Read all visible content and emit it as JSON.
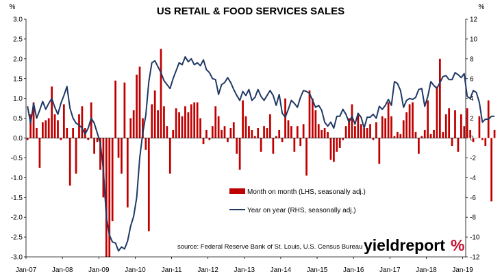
{
  "chart_data": {
    "type": "bar+line",
    "title": "US RETAIL & FOOD SERVICES SALES",
    "left_unit": "%",
    "right_unit": "%",
    "left_axis": {
      "min": -3.0,
      "max": 3.0,
      "step": 0.5,
      "ticks": [
        "3.0",
        "2.5",
        "2.0",
        "1.5",
        "1.0",
        "0.5",
        "0.0",
        "-0.5",
        "-1.0",
        "-1.5",
        "-2.0",
        "-2.5",
        "-3.0"
      ]
    },
    "right_axis": {
      "min": -12,
      "max": 12,
      "step": 2,
      "ticks": [
        "12",
        "10",
        "8",
        "6",
        "4",
        "2",
        "0",
        "-2",
        "-4",
        "-6",
        "-8",
        "-10",
        "-12"
      ]
    },
    "x_labels": [
      "Jan-07",
      "Jan-08",
      "Jan-09",
      "Jan-10",
      "Jan-11",
      "Jan-12",
      "Jan-13",
      "Jan-14",
      "Jan-15",
      "Jan-16",
      "Jan-17",
      "Jan-18",
      "Jan-19"
    ],
    "start_month": "Jan-07",
    "series": [
      {
        "name": "Month on month (LHS, seasonally adj.)",
        "type": "bar",
        "axis": "left",
        "color": "#c00000",
        "values": [
          -0.05,
          0.6,
          0.9,
          0.25,
          -0.75,
          0.4,
          0.45,
          0.5,
          1.3,
          0.6,
          0.45,
          -0.05,
          0.85,
          0.25,
          -1.2,
          0.25,
          -0.9,
          0.6,
          0.8,
          0.25,
          -0.05,
          0.9,
          -0.4,
          -0.1,
          -0.8,
          -1.5,
          -3.0,
          -3.0,
          -2.1,
          1.45,
          -0.5,
          -0.9,
          1.4,
          -1.75,
          0.5,
          0.7,
          1.6,
          1.8,
          0.5,
          -0.3,
          -2.35,
          0.85,
          1.2,
          0.7,
          2.25,
          0.8,
          0.3,
          -0.9,
          0.2,
          0.75,
          0.65,
          0.55,
          0.8,
          0.65,
          0.85,
          0.9,
          0.9,
          0.5,
          -0.15,
          0.2,
          -0.05,
          0.3,
          0.8,
          0.55,
          0.2,
          0.3,
          -0.1,
          0.25,
          0.4,
          -0.4,
          -0.8,
          0.95,
          0.55,
          0.3,
          0.2,
          0.05,
          0.25,
          -0.35,
          0.3,
          0.25,
          0.6,
          -0.4,
          0.05,
          0.2,
          -0.1,
          1.0,
          0.45,
          0.3,
          -0.35,
          0.3,
          -0.2,
          0.35,
          -0.95,
          1.2,
          1.0,
          0.7,
          0.35,
          0.2,
          0.25,
          0.15,
          -0.55,
          -0.6,
          -0.35,
          -0.25,
          -0.05,
          0.3,
          0.5,
          0.85,
          0.3,
          0.6,
          0.35,
          0.25,
          0.25,
          0.35,
          -0.05,
          0.4,
          -0.65,
          0.55,
          0.5,
          0.9,
          0.55,
          0.05,
          0.15,
          0.1,
          0.45,
          0.65,
          0.85,
          0.9,
          0.15,
          -0.4,
          0.05,
          0.2,
          0.95,
          0.1,
          0.2,
          1.3,
          2.0,
          0.15,
          0.6,
          0.75,
          -0.2,
          0.7,
          -0.35,
          0.6,
          0.3,
          0.75,
          0.2,
          -0.1,
          0.0,
          0.55,
          -0.05,
          -0.2,
          0.95,
          -1.6,
          0.2
        ]
      },
      {
        "name": "Year on year (RHS, seasonally adj.)",
        "type": "line",
        "axis": "right",
        "color": "#1f3864",
        "values": [
          3.2,
          1.5,
          3.5,
          2.0,
          2.8,
          3.7,
          2.9,
          3.5,
          4.0,
          3.1,
          2.4,
          3.5,
          4.3,
          5.2,
          3.0,
          2.0,
          1.5,
          1.3,
          1.0,
          0.4,
          1.0,
          2.0,
          1.5,
          0.5,
          -0.5,
          -3.2,
          -8.0,
          -9.8,
          -10.5,
          -10.6,
          -11.4,
          -11.0,
          -11.2,
          -10.4,
          -8.9,
          -7.9,
          -6.0,
          -2.0,
          0.5,
          2.3,
          5.7,
          7.6,
          7.8,
          7.2,
          6.6,
          5.8,
          5.4,
          5.0,
          6.0,
          6.8,
          7.6,
          7.4,
          8.2,
          7.7,
          8.0,
          7.4,
          7.6,
          7.3,
          7.9,
          6.9,
          6.6,
          6.0,
          5.9,
          4.4,
          5.4,
          5.6,
          6.1,
          5.6,
          4.9,
          4.3,
          3.8,
          4.7,
          4.3,
          4.9,
          3.8,
          4.1,
          4.9,
          4.2,
          3.8,
          4.3,
          4.8,
          4.3,
          3.3,
          4.4,
          2.5,
          2.1,
          2.9,
          3.8,
          3.5,
          3.1,
          4.1,
          4.8,
          4.7,
          4.5,
          3.8,
          3.1,
          3.3,
          2.8,
          1.6,
          1.2,
          1.6,
          1.0,
          2.2,
          2.2,
          2.9,
          2.4,
          1.6,
          2.2,
          1.4,
          2.5,
          2.1,
          1.0,
          2.1,
          2.1,
          2.4,
          2.0,
          3.2,
          2.9,
          3.3,
          3.9,
          3.3,
          5.7,
          5.5,
          4.8,
          3.1,
          3.8,
          4.0,
          3.9,
          4.1,
          4.9,
          5.0,
          3.2,
          4.2,
          5.7,
          5.3,
          5.0,
          5.6,
          6.2,
          6.3,
          5.9,
          5.9,
          6.6,
          6.4,
          6.1,
          6.5,
          4.2,
          4.0,
          4.8,
          4.6,
          3.6,
          1.6,
          1.9,
          1.9,
          2.2,
          2.2
        ]
      }
    ],
    "legend_position": "bottom-right-inside",
    "grid": false,
    "source": "source: Federal Reserve Bank of St. Louis, U.S. Census Bureau"
  },
  "logo": {
    "text": "yieldreport",
    "symbol": "%",
    "text_color": "#000000",
    "symbol_color": "#c8102e"
  }
}
